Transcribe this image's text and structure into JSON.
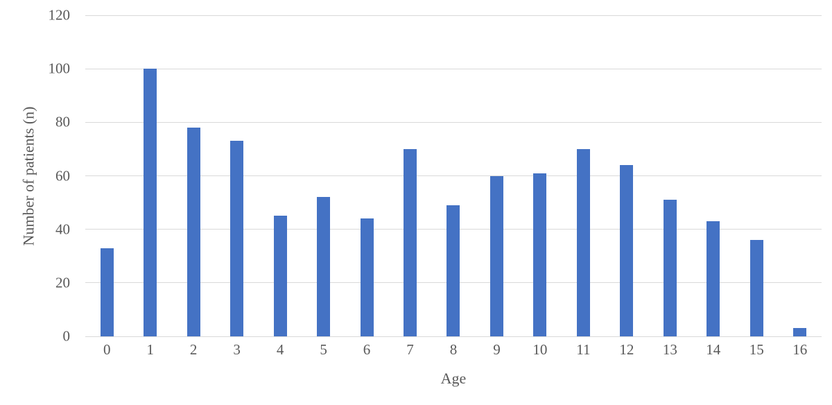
{
  "chart_data": {
    "type": "bar",
    "title": "",
    "xlabel": "Age",
    "ylabel": "Number of patients (n)",
    "categories": [
      "0",
      "1",
      "2",
      "3",
      "4",
      "5",
      "6",
      "7",
      "8",
      "9",
      "10",
      "11",
      "12",
      "13",
      "14",
      "15",
      "16"
    ],
    "values": [
      33,
      100,
      78,
      73,
      45,
      52,
      44,
      70,
      49,
      60,
      61,
      70,
      64,
      51,
      43,
      36,
      3
    ],
    "yticks": [
      0,
      20,
      40,
      60,
      80,
      100,
      120
    ],
    "ylim": [
      0,
      120
    ],
    "grid": "horizontal",
    "legend": "none",
    "colors": {
      "bar": "#4472c4",
      "gridline": "#d9d9d9",
      "text": "#595959",
      "background": "#ffffff"
    }
  }
}
